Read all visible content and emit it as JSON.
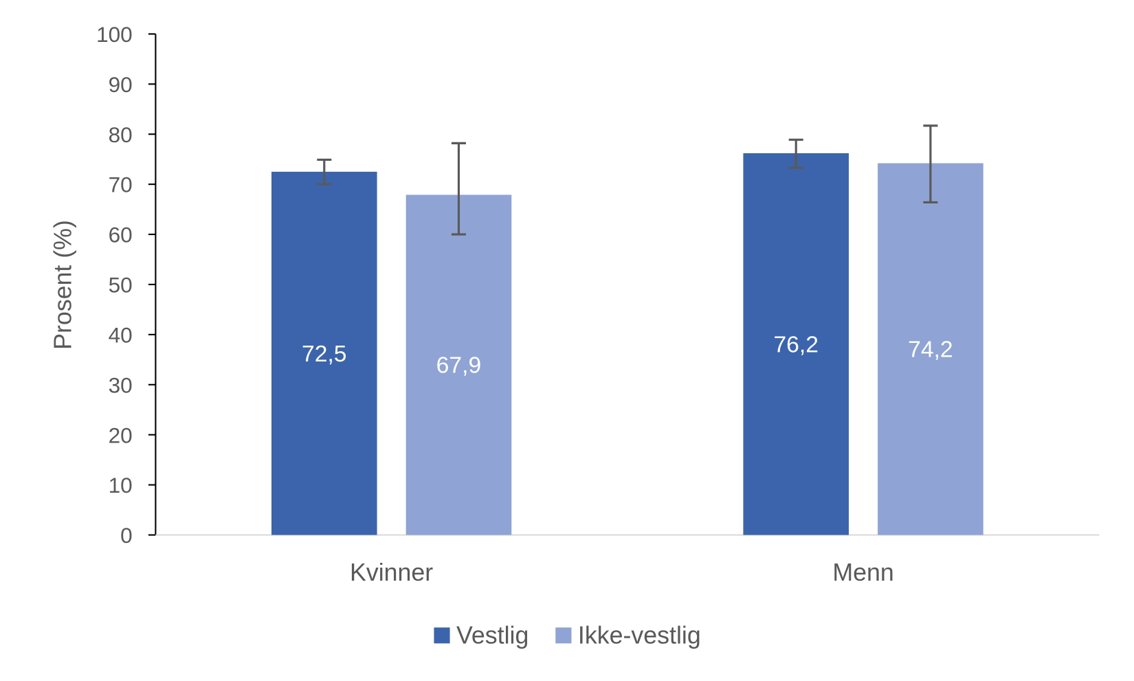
{
  "chart_data": {
    "type": "bar",
    "title": "",
    "xlabel": "",
    "ylabel": "Prosent (%)",
    "ylim": [
      0,
      100
    ],
    "yticks": [
      0,
      10,
      20,
      30,
      40,
      50,
      60,
      70,
      80,
      90,
      100
    ],
    "categories": [
      "Kvinner",
      "Menn"
    ],
    "grid": false,
    "legend": "bottom",
    "series": [
      {
        "name": "Vestlig",
        "color": "#3C64AC",
        "values": [
          72.5,
          76.2
        ],
        "labels": [
          "72,5",
          "76,2"
        ],
        "error_low": [
          70.0,
          73.3
        ],
        "error_high": [
          74.9,
          78.9
        ]
      },
      {
        "name": "Ikke-vestlig",
        "color": "#8FA3D4",
        "values": [
          67.9,
          74.2
        ],
        "labels": [
          "67,9",
          "74,2"
        ],
        "error_low": [
          60.0,
          66.4
        ],
        "error_high": [
          78.2,
          81.7
        ]
      }
    ]
  }
}
